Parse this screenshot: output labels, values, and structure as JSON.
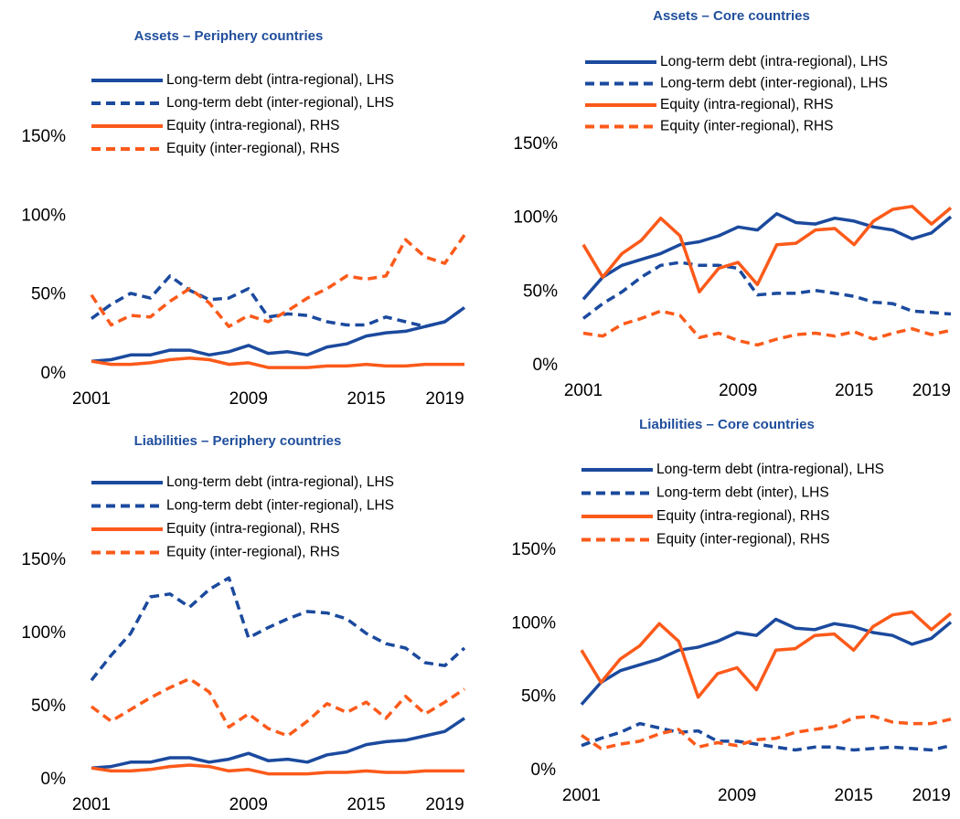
{
  "chart_data": [
    {
      "type": "line",
      "title": "Assets – Periphery countries",
      "x": [
        2001,
        2002,
        2003,
        2004,
        2005,
        2006,
        2007,
        2008,
        2009,
        2010,
        2011,
        2012,
        2013,
        2014,
        2015,
        2016,
        2017,
        2018,
        2019,
        2020
      ],
      "xlim": [
        2001,
        2020
      ],
      "xticks": [
        2001,
        2009,
        2015,
        2019
      ],
      "ylim": [
        0,
        150
      ],
      "yticks": [
        {
          "value": 0,
          "label": "0%"
        },
        {
          "value": 50,
          "label": "50%"
        },
        {
          "value": 100,
          "label": "100%"
        },
        {
          "value": 150,
          "label": "150%"
        }
      ],
      "series": [
        {
          "name": "Long-term debt (intra-regional), LHS",
          "color": "#1b4a9e",
          "dashed": false,
          "values": [
            8,
            9,
            12,
            12,
            15,
            15,
            12,
            14,
            18,
            13,
            14,
            12,
            17,
            19,
            24,
            26,
            27,
            30,
            33,
            42
          ]
        },
        {
          "name": "Long-term debt (inter-regional), LHS",
          "color": "#1b4a9e",
          "dashed": true,
          "values": [
            35,
            44,
            51,
            48,
            62,
            53,
            47,
            48,
            54,
            36,
            38,
            37,
            33,
            31,
            31,
            36,
            33,
            30,
            33,
            42
          ]
        },
        {
          "name": "Equity (intra-regional), RHS",
          "color": "#fc5a1a",
          "dashed": false,
          "values": [
            8,
            6,
            6,
            7,
            9,
            10,
            9,
            6,
            7,
            4,
            4,
            4,
            5,
            5,
            6,
            5,
            5,
            6,
            6,
            6
          ]
        },
        {
          "name": "Equity (inter-regional), RHS",
          "color": "#fc5a1a",
          "dashed": true,
          "values": [
            50,
            31,
            37,
            36,
            46,
            54,
            45,
            30,
            37,
            33,
            40,
            48,
            54,
            62,
            60,
            62,
            85,
            74,
            70,
            88
          ]
        }
      ]
    },
    {
      "type": "line",
      "title": "Assets – Core countries",
      "x": [
        2001,
        2002,
        2003,
        2004,
        2005,
        2006,
        2007,
        2008,
        2009,
        2010,
        2011,
        2012,
        2013,
        2014,
        2015,
        2016,
        2017,
        2018,
        2019,
        2020
      ],
      "xlim": [
        2001,
        2020
      ],
      "xticks": [
        2001,
        2009,
        2015,
        2019
      ],
      "ylim": [
        0,
        150
      ],
      "yticks": [
        {
          "value": 0,
          "label": "0%"
        },
        {
          "value": 50,
          "label": "50%"
        },
        {
          "value": 100,
          "label": "100%"
        },
        {
          "value": 150,
          "label": "150%"
        }
      ],
      "series": [
        {
          "name": "Long-term debt (intra-regional), LHS",
          "color": "#1b4a9e",
          "dashed": false,
          "values": [
            45,
            60,
            68,
            72,
            76,
            82,
            84,
            88,
            94,
            92,
            103,
            97,
            96,
            100,
            98,
            94,
            92,
            86,
            90,
            101
          ]
        },
        {
          "name": "Long-term debt (inter-regional), LHS",
          "color": "#1b4a9e",
          "dashed": true,
          "values": [
            32,
            42,
            50,
            60,
            68,
            70,
            68,
            68,
            66,
            48,
            49,
            49,
            51,
            49,
            47,
            43,
            42,
            37,
            36,
            35
          ]
        },
        {
          "name": "Equity (intra-regional), RHS",
          "color": "#fc5a1a",
          "dashed": false,
          "values": [
            82,
            60,
            76,
            85,
            100,
            88,
            50,
            66,
            70,
            55,
            82,
            83,
            92,
            93,
            82,
            98,
            106,
            108,
            96,
            107
          ]
        },
        {
          "name": "Equity (inter-regional), RHS",
          "color": "#fc5a1a",
          "dashed": true,
          "values": [
            22,
            20,
            28,
            32,
            37,
            34,
            19,
            22,
            17,
            14,
            18,
            21,
            22,
            20,
            23,
            18,
            22,
            25,
            21,
            24
          ]
        }
      ]
    },
    {
      "type": "line",
      "title": "Liabilities – Periphery countries",
      "x": [
        2001,
        2002,
        2003,
        2004,
        2005,
        2006,
        2007,
        2008,
        2009,
        2010,
        2011,
        2012,
        2013,
        2014,
        2015,
        2016,
        2017,
        2018,
        2019,
        2020
      ],
      "xlim": [
        2001,
        2020
      ],
      "xticks": [
        2001,
        2009,
        2015,
        2019
      ],
      "ylim": [
        0,
        150
      ],
      "yticks": [
        {
          "value": 0,
          "label": "0%"
        },
        {
          "value": 50,
          "label": "50%"
        },
        {
          "value": 100,
          "label": "100%"
        },
        {
          "value": 150,
          "label": "150%"
        }
      ],
      "series": [
        {
          "name": "Long-term debt (intra-regional), LHS",
          "color": "#1b4a9e",
          "dashed": false,
          "values": [
            8,
            9,
            12,
            12,
            15,
            15,
            12,
            14,
            18,
            13,
            14,
            12,
            17,
            19,
            24,
            26,
            27,
            30,
            33,
            42
          ]
        },
        {
          "name": "Long-term debt (inter-regional), LHS",
          "color": "#1b4a9e",
          "dashed": true,
          "values": [
            68,
            85,
            100,
            125,
            127,
            118,
            130,
            138,
            97,
            104,
            110,
            115,
            114,
            110,
            100,
            93,
            90,
            80,
            78,
            90
          ]
        },
        {
          "name": "Equity (intra-regional), RHS",
          "color": "#fc5a1a",
          "dashed": false,
          "values": [
            8,
            6,
            6,
            7,
            9,
            10,
            9,
            6,
            7,
            4,
            4,
            4,
            5,
            5,
            6,
            5,
            5,
            6,
            6,
            6
          ]
        },
        {
          "name": "Equity (inter-regional), RHS",
          "color": "#fc5a1a",
          "dashed": true,
          "values": [
            50,
            40,
            48,
            56,
            63,
            69,
            60,
            36,
            45,
            35,
            30,
            40,
            52,
            46,
            53,
            42,
            57,
            45,
            53,
            62
          ]
        }
      ]
    },
    {
      "type": "line",
      "title": "Liabilities – Core countries",
      "x": [
        2001,
        2002,
        2003,
        2004,
        2005,
        2006,
        2007,
        2008,
        2009,
        2010,
        2011,
        2012,
        2013,
        2014,
        2015,
        2016,
        2017,
        2018,
        2019,
        2020
      ],
      "xlim": [
        2001,
        2020
      ],
      "xticks": [
        2001,
        2009,
        2015,
        2019
      ],
      "ylim": [
        0,
        150
      ],
      "yticks": [
        {
          "value": 0,
          "label": "0%"
        },
        {
          "value": 50,
          "label": "50%"
        },
        {
          "value": 100,
          "label": "100%"
        },
        {
          "value": 150,
          "label": "150%"
        }
      ],
      "series": [
        {
          "name": "Long-term debt (intra-regional), LHS",
          "color": "#1b4a9e",
          "dashed": false,
          "values": [
            45,
            60,
            68,
            72,
            76,
            82,
            84,
            88,
            94,
            92,
            103,
            97,
            96,
            100,
            98,
            94,
            92,
            86,
            90,
            101
          ]
        },
        {
          "name": "Long-term debt (inter), LHS",
          "color": "#1b4a9e",
          "dashed": true,
          "values": [
            17,
            22,
            26,
            32,
            29,
            26,
            27,
            20,
            20,
            18,
            16,
            14,
            16,
            16,
            14,
            15,
            16,
            15,
            14,
            17
          ]
        },
        {
          "name": "Equity (intra-regional), RHS",
          "color": "#fc5a1a",
          "dashed": false,
          "values": [
            82,
            60,
            76,
            85,
            100,
            88,
            50,
            66,
            70,
            55,
            82,
            83,
            92,
            93,
            82,
            98,
            106,
            108,
            96,
            107
          ]
        },
        {
          "name": "Equity (inter-regional), RHS",
          "color": "#fc5a1a",
          "dashed": true,
          "values": [
            24,
            15,
            18,
            20,
            25,
            28,
            16,
            19,
            17,
            21,
            22,
            26,
            28,
            30,
            36,
            37,
            33,
            32,
            32,
            35
          ]
        }
      ]
    }
  ]
}
